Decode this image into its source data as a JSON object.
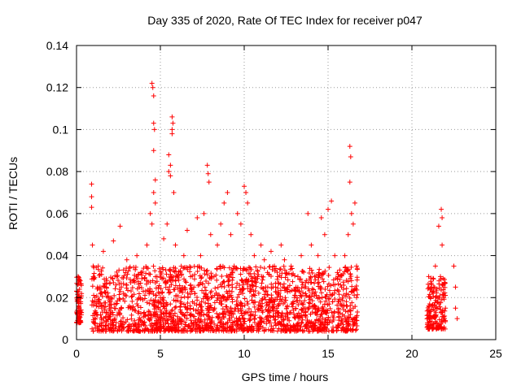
{
  "chart_data": {
    "type": "scatter",
    "title": "Day 335 of 2020, Rate Of TEC Index for receiver p047",
    "xlabel": "GPS time / hours",
    "ylabel": "ROTI / TECUs",
    "xlim": [
      0,
      25
    ],
    "ylim": [
      0,
      0.14
    ],
    "xticks": [
      "0",
      "5",
      "10",
      "15",
      "20",
      "25"
    ],
    "yticks": [
      "0",
      "0.02",
      "0.04",
      "0.06",
      "0.08",
      "0.1",
      "0.12",
      "0.14"
    ],
    "grid": true,
    "marker": "+",
    "color": "#ff0000",
    "series": [
      {
        "points": [
          [
            0.05,
            0.012
          ],
          [
            0.08,
            0.02
          ],
          [
            0.1,
            0.03
          ],
          [
            0.12,
            0.016
          ],
          [
            0.15,
            0.01
          ],
          [
            0.18,
            0.024
          ],
          [
            0.2,
            0.013
          ],
          [
            0.22,
            0.028
          ],
          [
            0.25,
            0.018
          ],
          [
            0.1,
            0.009
          ],
          [
            0.9,
            0.074
          ],
          [
            0.9,
            0.068
          ],
          [
            0.9,
            0.063
          ],
          [
            0.95,
            0.045
          ],
          [
            1.0,
            0.03
          ],
          [
            1.1,
            0.02
          ],
          [
            1.2,
            0.012
          ],
          [
            1.3,
            0.035
          ],
          [
            1.4,
            0.025
          ],
          [
            1.5,
            0.015
          ],
          [
            1.6,
            0.042
          ],
          [
            1.8,
            0.028
          ],
          [
            2.0,
            0.018
          ],
          [
            2.2,
            0.047
          ],
          [
            2.4,
            0.03
          ],
          [
            2.6,
            0.054
          ],
          [
            2.8,
            0.022
          ],
          [
            3.0,
            0.038
          ],
          [
            3.2,
            0.015
          ],
          [
            3.4,
            0.028
          ],
          [
            3.6,
            0.04
          ],
          [
            3.8,
            0.02
          ],
          [
            4.0,
            0.034
          ],
          [
            4.2,
            0.045
          ],
          [
            4.4,
            0.06
          ],
          [
            4.5,
            0.122
          ],
          [
            4.55,
            0.12
          ],
          [
            4.6,
            0.116
          ],
          [
            4.6,
            0.103
          ],
          [
            4.65,
            0.1
          ],
          [
            4.6,
            0.09
          ],
          [
            4.7,
            0.076
          ],
          [
            4.6,
            0.07
          ],
          [
            4.7,
            0.065
          ],
          [
            4.5,
            0.055
          ],
          [
            4.8,
            0.03
          ],
          [
            5.0,
            0.02
          ],
          [
            5.2,
            0.048
          ],
          [
            5.4,
            0.055
          ],
          [
            5.5,
            0.088
          ],
          [
            5.6,
            0.083
          ],
          [
            5.5,
            0.08
          ],
          [
            5.6,
            0.078
          ],
          [
            5.7,
            0.106
          ],
          [
            5.75,
            0.103
          ],
          [
            5.7,
            0.1
          ],
          [
            5.7,
            0.098
          ],
          [
            5.8,
            0.07
          ],
          [
            5.9,
            0.045
          ],
          [
            6.0,
            0.03
          ],
          [
            6.2,
            0.018
          ],
          [
            6.4,
            0.04
          ],
          [
            6.6,
            0.052
          ],
          [
            6.8,
            0.03
          ],
          [
            7.0,
            0.025
          ],
          [
            7.2,
            0.058
          ],
          [
            7.4,
            0.04
          ],
          [
            7.6,
            0.06
          ],
          [
            7.8,
            0.083
          ],
          [
            7.85,
            0.079
          ],
          [
            7.9,
            0.075
          ],
          [
            8.0,
            0.05
          ],
          [
            8.2,
            0.03
          ],
          [
            8.4,
            0.045
          ],
          [
            8.6,
            0.055
          ],
          [
            8.8,
            0.065
          ],
          [
            9.0,
            0.07
          ],
          [
            9.2,
            0.05
          ],
          [
            9.4,
            0.035
          ],
          [
            9.6,
            0.06
          ],
          [
            9.8,
            0.055
          ],
          [
            10.0,
            0.073
          ],
          [
            10.1,
            0.07
          ],
          [
            10.2,
            0.065
          ],
          [
            10.4,
            0.05
          ],
          [
            10.6,
            0.04
          ],
          [
            10.8,
            0.03
          ],
          [
            11.0,
            0.045
          ],
          [
            11.2,
            0.038
          ],
          [
            11.4,
            0.025
          ],
          [
            11.6,
            0.042
          ],
          [
            11.8,
            0.035
          ],
          [
            12.0,
            0.03
          ],
          [
            12.2,
            0.045
          ],
          [
            12.4,
            0.038
          ],
          [
            12.6,
            0.025
          ],
          [
            12.8,
            0.035
          ],
          [
            13.0,
            0.02
          ],
          [
            13.2,
            0.03
          ],
          [
            13.4,
            0.04
          ],
          [
            13.6,
            0.025
          ],
          [
            13.8,
            0.06
          ],
          [
            14.0,
            0.045
          ],
          [
            14.2,
            0.03
          ],
          [
            14.4,
            0.04
          ],
          [
            14.6,
            0.058
          ],
          [
            14.8,
            0.05
          ],
          [
            15.0,
            0.062
          ],
          [
            15.2,
            0.066
          ],
          [
            15.4,
            0.04
          ],
          [
            15.6,
            0.03
          ],
          [
            15.8,
            0.025
          ],
          [
            16.0,
            0.04
          ],
          [
            16.2,
            0.05
          ],
          [
            16.3,
            0.092
          ],
          [
            16.35,
            0.087
          ],
          [
            16.3,
            0.075
          ],
          [
            16.4,
            0.06
          ],
          [
            16.5,
            0.055
          ],
          [
            16.6,
            0.065
          ],
          [
            16.7,
            0.035
          ],
          [
            16.7,
            0.02
          ],
          [
            16.6,
            0.01
          ],
          [
            16.5,
            0.015
          ],
          [
            21.0,
            0.03
          ],
          [
            21.1,
            0.02
          ],
          [
            21.2,
            0.01
          ],
          [
            21.3,
            0.025
          ],
          [
            21.4,
            0.035
          ],
          [
            21.5,
            0.015
          ],
          [
            21.5,
            0.008
          ],
          [
            21.6,
            0.054
          ],
          [
            21.7,
            0.03
          ],
          [
            21.75,
            0.062
          ],
          [
            21.8,
            0.058
          ],
          [
            21.8,
            0.045
          ],
          [
            21.9,
            0.02
          ],
          [
            22.0,
            0.015
          ],
          [
            22.5,
            0.035
          ],
          [
            22.6,
            0.025
          ],
          [
            22.6,
            0.015
          ],
          [
            22.7,
            0.01
          ]
        ]
      }
    ],
    "dense_bands": [
      {
        "x_range": [
          0,
          0.3
        ],
        "y_range": [
          0.008,
          0.03
        ]
      },
      {
        "x_range": [
          0.9,
          16.75
        ],
        "y_range": [
          0.004,
          0.035
        ]
      },
      {
        "x_range": [
          20.9,
          22.0
        ],
        "y_range": [
          0.005,
          0.03
        ]
      }
    ]
  }
}
